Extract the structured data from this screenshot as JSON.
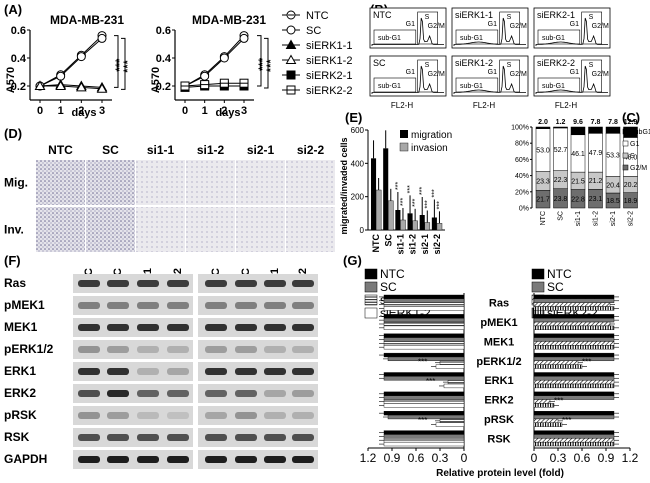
{
  "panels": {
    "A": "(A)",
    "B": "(B)",
    "C": "(C)",
    "D": "(D)",
    "E": "(E)",
    "F": "(F)",
    "G": "(G)"
  },
  "panel_a": {
    "cell_line": "MDA-MB-231",
    "ylabel": "A570",
    "xlabel": "days",
    "x_ticks": [
      "0",
      "1",
      "2",
      "3"
    ],
    "y_ticks": [
      "0.2",
      "0.4",
      "0.6"
    ],
    "sig": "***",
    "legend": [
      "NTC",
      "SC",
      "siERK1-1",
      "siERK1-2",
      "siERK2-1",
      "siERK2-2"
    ]
  },
  "panel_b": {
    "samples": [
      "NTC",
      "siERK1-1",
      "siERK2-1",
      "SC",
      "siERK1-2",
      "siERK2-2"
    ],
    "gate_labels": [
      "sub-G1",
      "G1",
      "S",
      "G2/M"
    ],
    "xlabel": "FL2-H"
  },
  "panel_c": {
    "top_values": [
      "2.0",
      "1.2",
      "9.6",
      "7.8",
      "7.8",
      "12.9"
    ],
    "legend": [
      "SubG1",
      "G1",
      "S",
      "G2/M"
    ],
    "y_ticks": [
      "100%",
      "80%",
      "60%",
      "40%",
      "20%",
      "0%"
    ],
    "categories": [
      "NTC",
      "SC",
      "si1-1",
      "si1-2",
      "si2-1",
      "si2-2"
    ]
  },
  "panel_d": {
    "columns": [
      "NTC",
      "SC",
      "si1-1",
      "si1-2",
      "si2-1",
      "si2-2"
    ],
    "rows": [
      "Mig.",
      "Inv."
    ]
  },
  "panel_e": {
    "ylabel": "migrated/invaded cells",
    "categories": [
      "NTC",
      "SC",
      "si1-1",
      "si1-2",
      "si2-1",
      "si2-2"
    ],
    "y_ticks": [
      "0",
      "200",
      "400",
      "600"
    ],
    "legend": [
      "migration",
      "invasion"
    ],
    "sig": "***"
  },
  "panel_f": {
    "lanes": [
      "NTC",
      "SC",
      "si1-1",
      "si1-2",
      "NTC",
      "SC",
      "si2-1",
      "si2-2"
    ],
    "proteins": [
      "Ras",
      "pMEK1",
      "MEK1",
      "pERK1/2",
      "ERK1",
      "ERK2",
      "pRSK",
      "RSK",
      "GAPDH"
    ]
  },
  "panel_g": {
    "legend_left": [
      "NTC",
      "SC",
      "siERK1-1",
      "siERK1-2"
    ],
    "legend_right": [
      "NTC",
      "SC",
      "siERK2-1",
      "siERK2-2"
    ],
    "proteins": [
      "Ras",
      "pMEK1",
      "MEK1",
      "pERK1/2",
      "ERK1",
      "ERK2",
      "pRSK",
      "RSK"
    ],
    "x_ticks_left": [
      "1.2",
      "0.9",
      "0.6",
      "0.3",
      "0"
    ],
    "x_ticks_right": [
      "0",
      "0.3",
      "0.6",
      "0.9",
      "1.2"
    ],
    "xlabel": "Relative protein level (fold)",
    "sig": "***"
  },
  "chart_data": [
    {
      "type": "line",
      "panel": "A-left",
      "title": "MDA-MB-231",
      "xlabel": "days",
      "ylabel": "A570",
      "x": [
        0,
        1,
        2,
        3
      ],
      "ylim": [
        0.1,
        0.6
      ],
      "series": [
        {
          "name": "NTC",
          "values": [
            0.2,
            0.28,
            0.42,
            0.56
          ]
        },
        {
          "name": "SC",
          "values": [
            0.2,
            0.27,
            0.41,
            0.54
          ]
        },
        {
          "name": "siERK1-1",
          "values": [
            0.2,
            0.21,
            0.2,
            0.19
          ]
        },
        {
          "name": "siERK1-2",
          "values": [
            0.2,
            0.2,
            0.19,
            0.18
          ]
        }
      ]
    },
    {
      "type": "line",
      "panel": "A-right",
      "title": "MDA-MB-231",
      "xlabel": "days",
      "ylabel": "A570",
      "x": [
        0,
        1,
        2,
        3
      ],
      "ylim": [
        0.1,
        0.6
      ],
      "series": [
        {
          "name": "NTC",
          "values": [
            0.2,
            0.28,
            0.41,
            0.56
          ]
        },
        {
          "name": "SC",
          "values": [
            0.2,
            0.27,
            0.4,
            0.54
          ]
        },
        {
          "name": "siERK2-1",
          "values": [
            0.19,
            0.2,
            0.2,
            0.2
          ]
        },
        {
          "name": "siERK2-2",
          "values": [
            0.2,
            0.21,
            0.22,
            0.22
          ]
        }
      ]
    },
    {
      "type": "bar",
      "panel": "C",
      "categories": [
        "NTC",
        "SC",
        "si1-1",
        "si1-2",
        "si2-1",
        "si2-2"
      ],
      "ylim": [
        0,
        100
      ],
      "series": [
        {
          "name": "SubG1",
          "values": [
            2.0,
            1.2,
            9.6,
            7.8,
            7.8,
            12.9
          ]
        },
        {
          "name": "G1",
          "values": [
            53.0,
            52.7,
            46.1,
            47.9,
            53.3,
            48.0
          ]
        },
        {
          "name": "S",
          "values": [
            23.3,
            22.3,
            21.5,
            21.2,
            20.4,
            20.2
          ]
        },
        {
          "name": "G2/M",
          "values": [
            21.7,
            23.8,
            22.8,
            23.1,
            18.5,
            18.9
          ]
        }
      ]
    },
    {
      "type": "bar",
      "panel": "E",
      "categories": [
        "NTC",
        "SC",
        "si1-1",
        "si1-2",
        "si2-1",
        "si2-2"
      ],
      "ylabel": "migrated/invaded cells",
      "ylim": [
        0,
        600
      ],
      "series": [
        {
          "name": "migration",
          "values": [
            430,
            490,
            120,
            100,
            90,
            75
          ]
        },
        {
          "name": "invasion",
          "values": [
            240,
            175,
            60,
            55,
            45,
            40
          ]
        }
      ]
    },
    {
      "type": "bar",
      "panel": "G-left",
      "categories": [
        "Ras",
        "pMEK1",
        "MEK1",
        "pERK1/2",
        "ERK1",
        "ERK2",
        "pRSK",
        "RSK"
      ],
      "xlabel": "Relative protein level (fold)",
      "xlim": [
        0,
        1.2
      ],
      "series": [
        {
          "name": "NTC",
          "values": [
            1.0,
            1.0,
            1.0,
            1.0,
            1.0,
            1.0,
            1.0,
            1.0
          ]
        },
        {
          "name": "SC",
          "values": [
            1.0,
            1.0,
            1.0,
            0.95,
            1.0,
            1.0,
            0.95,
            1.0
          ]
        },
        {
          "name": "siERK1-1",
          "values": [
            1.0,
            1.0,
            1.0,
            0.3,
            0.2,
            1.0,
            0.3,
            1.0
          ]
        },
        {
          "name": "siERK1-2",
          "values": [
            1.0,
            1.0,
            1.0,
            0.35,
            0.25,
            1.0,
            0.35,
            1.0
          ]
        }
      ]
    },
    {
      "type": "bar",
      "panel": "G-right",
      "categories": [
        "Ras",
        "pMEK1",
        "MEK1",
        "pERK1/2",
        "ERK1",
        "ERK2",
        "pRSK",
        "RSK"
      ],
      "xlabel": "Relative protein level (fold)",
      "xlim": [
        0,
        1.2
      ],
      "series": [
        {
          "name": "NTC",
          "values": [
            1.0,
            1.0,
            1.0,
            1.0,
            1.0,
            1.0,
            1.0,
            1.0
          ]
        },
        {
          "name": "SC",
          "values": [
            1.0,
            1.0,
            1.0,
            1.0,
            1.0,
            1.0,
            1.0,
            1.0
          ]
        },
        {
          "name": "siERK2-1",
          "values": [
            0.95,
            0.95,
            1.0,
            0.55,
            1.0,
            0.2,
            0.3,
            1.0
          ]
        },
        {
          "name": "siERK2-2",
          "values": [
            1.0,
            1.0,
            1.0,
            0.6,
            1.0,
            0.25,
            0.35,
            1.0
          ]
        }
      ]
    }
  ]
}
